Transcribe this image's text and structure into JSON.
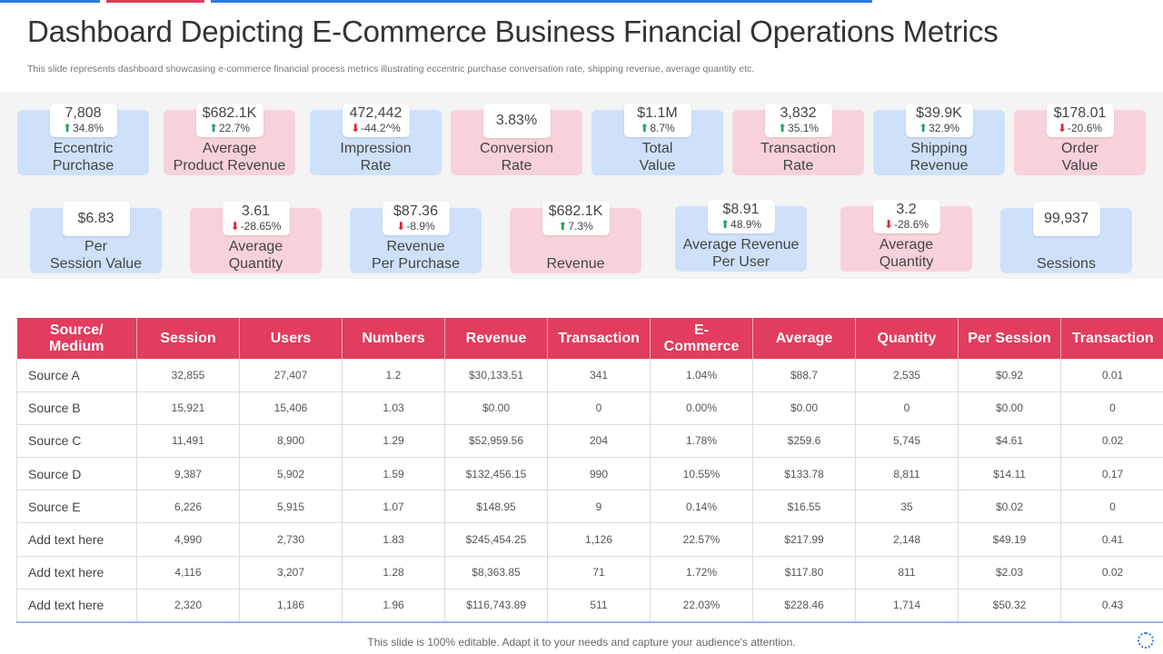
{
  "title": "Dashboard Depicting E-Commerce Business Financial Operations Metrics",
  "subtitle": "This slide represents dashboard showcasing e-commerce financial process metrics illustrating eccentric purchase conversation rate, shipping revenue, average quantity etc.",
  "colors": {
    "accent_blue": "#2f7ae5",
    "accent_red": "#e23c5e",
    "card_blue": "#cfe1fa",
    "card_pink": "#f8d2da",
    "up": "#23a35a",
    "down": "#e0213a"
  },
  "kpis_row1": [
    {
      "value": "7,808",
      "change": "34.8%",
      "direction": "up",
      "label1": "Eccentric",
      "label2": "Purchase"
    },
    {
      "value": "$682.1K",
      "change": "22.7%",
      "direction": "up",
      "label1": "Average",
      "label2": "Product Revenue"
    },
    {
      "value": "472,442",
      "change": "-44.2^%",
      "direction": "down",
      "label1": "Impression",
      "label2": "Rate"
    },
    {
      "value": "3.83%",
      "label1": "Conversion",
      "label2": "Rate"
    },
    {
      "value": "$1.1M",
      "change": "8.7%",
      "direction": "up",
      "label1": "Total",
      "label2": "Value"
    },
    {
      "value": "3,832",
      "change": "35.1%",
      "direction": "up",
      "label1": "Transaction",
      "label2": "Rate"
    },
    {
      "value": "$39.9K",
      "change": "32.9%",
      "direction": "up",
      "label1": "Shipping",
      "label2": "Revenue"
    },
    {
      "value": "$178.01",
      "change": "-20.6%",
      "direction": "down",
      "label1": "Order",
      "label2": "Value"
    }
  ],
  "kpis_row2": [
    {
      "value": "$6.83",
      "label1": "Per",
      "label2": "Session Value"
    },
    {
      "value": "3.61",
      "change": "-28.65%",
      "direction": "down",
      "label1": "Average",
      "label2": "Quantity"
    },
    {
      "value": "$87.36",
      "change": "-8.9%",
      "direction": "down",
      "label1": "Revenue",
      "label2": "Per Purchase"
    },
    {
      "value": "$682.1K",
      "change": "7.3%",
      "direction": "up",
      "label1": "",
      "label2": "Revenue"
    },
    {
      "value": "$8.91",
      "change": "48.9%",
      "direction": "up",
      "label1": "Average Revenue",
      "label2": "Per User"
    },
    {
      "value": "3.2",
      "change": "-28.6%",
      "direction": "down",
      "label1": "Average",
      "label2": "Quantity"
    },
    {
      "value": "99,937",
      "label1": "",
      "label2": "Sessions"
    }
  ],
  "table": {
    "headers": [
      "Source/\nMedium",
      "Session",
      "Users",
      "Numbers",
      "Revenue",
      "Transaction",
      "E-\nCommerce",
      "Average",
      "Quantity",
      "Per Session",
      "Transaction"
    ],
    "rows": [
      [
        "Source A",
        "32,855",
        "27,407",
        "1.2",
        "$30,133.51",
        "341",
        "1.04%",
        "$88.7",
        "2,535",
        "$0.92",
        "0.01"
      ],
      [
        "Source B",
        "15,921",
        "15,406",
        "1.03",
        "$0.00",
        "0",
        "0.00%",
        "$0.00",
        "0",
        "$0.00",
        "0"
      ],
      [
        "Source C",
        "11,491",
        "8,900",
        "1.29",
        "$52,959.56",
        "204",
        "1.78%",
        "$259.6",
        "5,745",
        "$4.61",
        "0.02"
      ],
      [
        "Source D",
        "9,387",
        "5,902",
        "1.59",
        "$132,456.15",
        "990",
        "10.55%",
        "$133.78",
        "8,811",
        "$14.11",
        "0.17"
      ],
      [
        "Source E",
        "6,226",
        "5,915",
        "1.07",
        "$148.95",
        "9",
        "0.14%",
        "$16.55",
        "35",
        "$0.02",
        "0"
      ],
      [
        "Add text here",
        "4,990",
        "2,730",
        "1.83",
        "$245,454.25",
        "1,126",
        "22.57%",
        "$217.99",
        "2,148",
        "$49.19",
        "0.41"
      ],
      [
        "Add text here",
        "4,116",
        "3,207",
        "1.28",
        "$8,363.85",
        "71",
        "1.72%",
        "$117.80",
        "811",
        "$2.03",
        "0.02"
      ],
      [
        "Add text here",
        "2,320",
        "1,186",
        "1.96",
        "$116,743.89",
        "511",
        "22.03%",
        "$228.46",
        "1,714",
        "$50.32",
        "0.43"
      ]
    ]
  },
  "footer": "This slide is 100% editable. Adapt it to your needs and capture your audience's attention.",
  "icons": {
    "up_arrow": "up-arrow-icon",
    "down_arrow": "down-arrow-icon",
    "corner": "loading-ring-icon"
  }
}
